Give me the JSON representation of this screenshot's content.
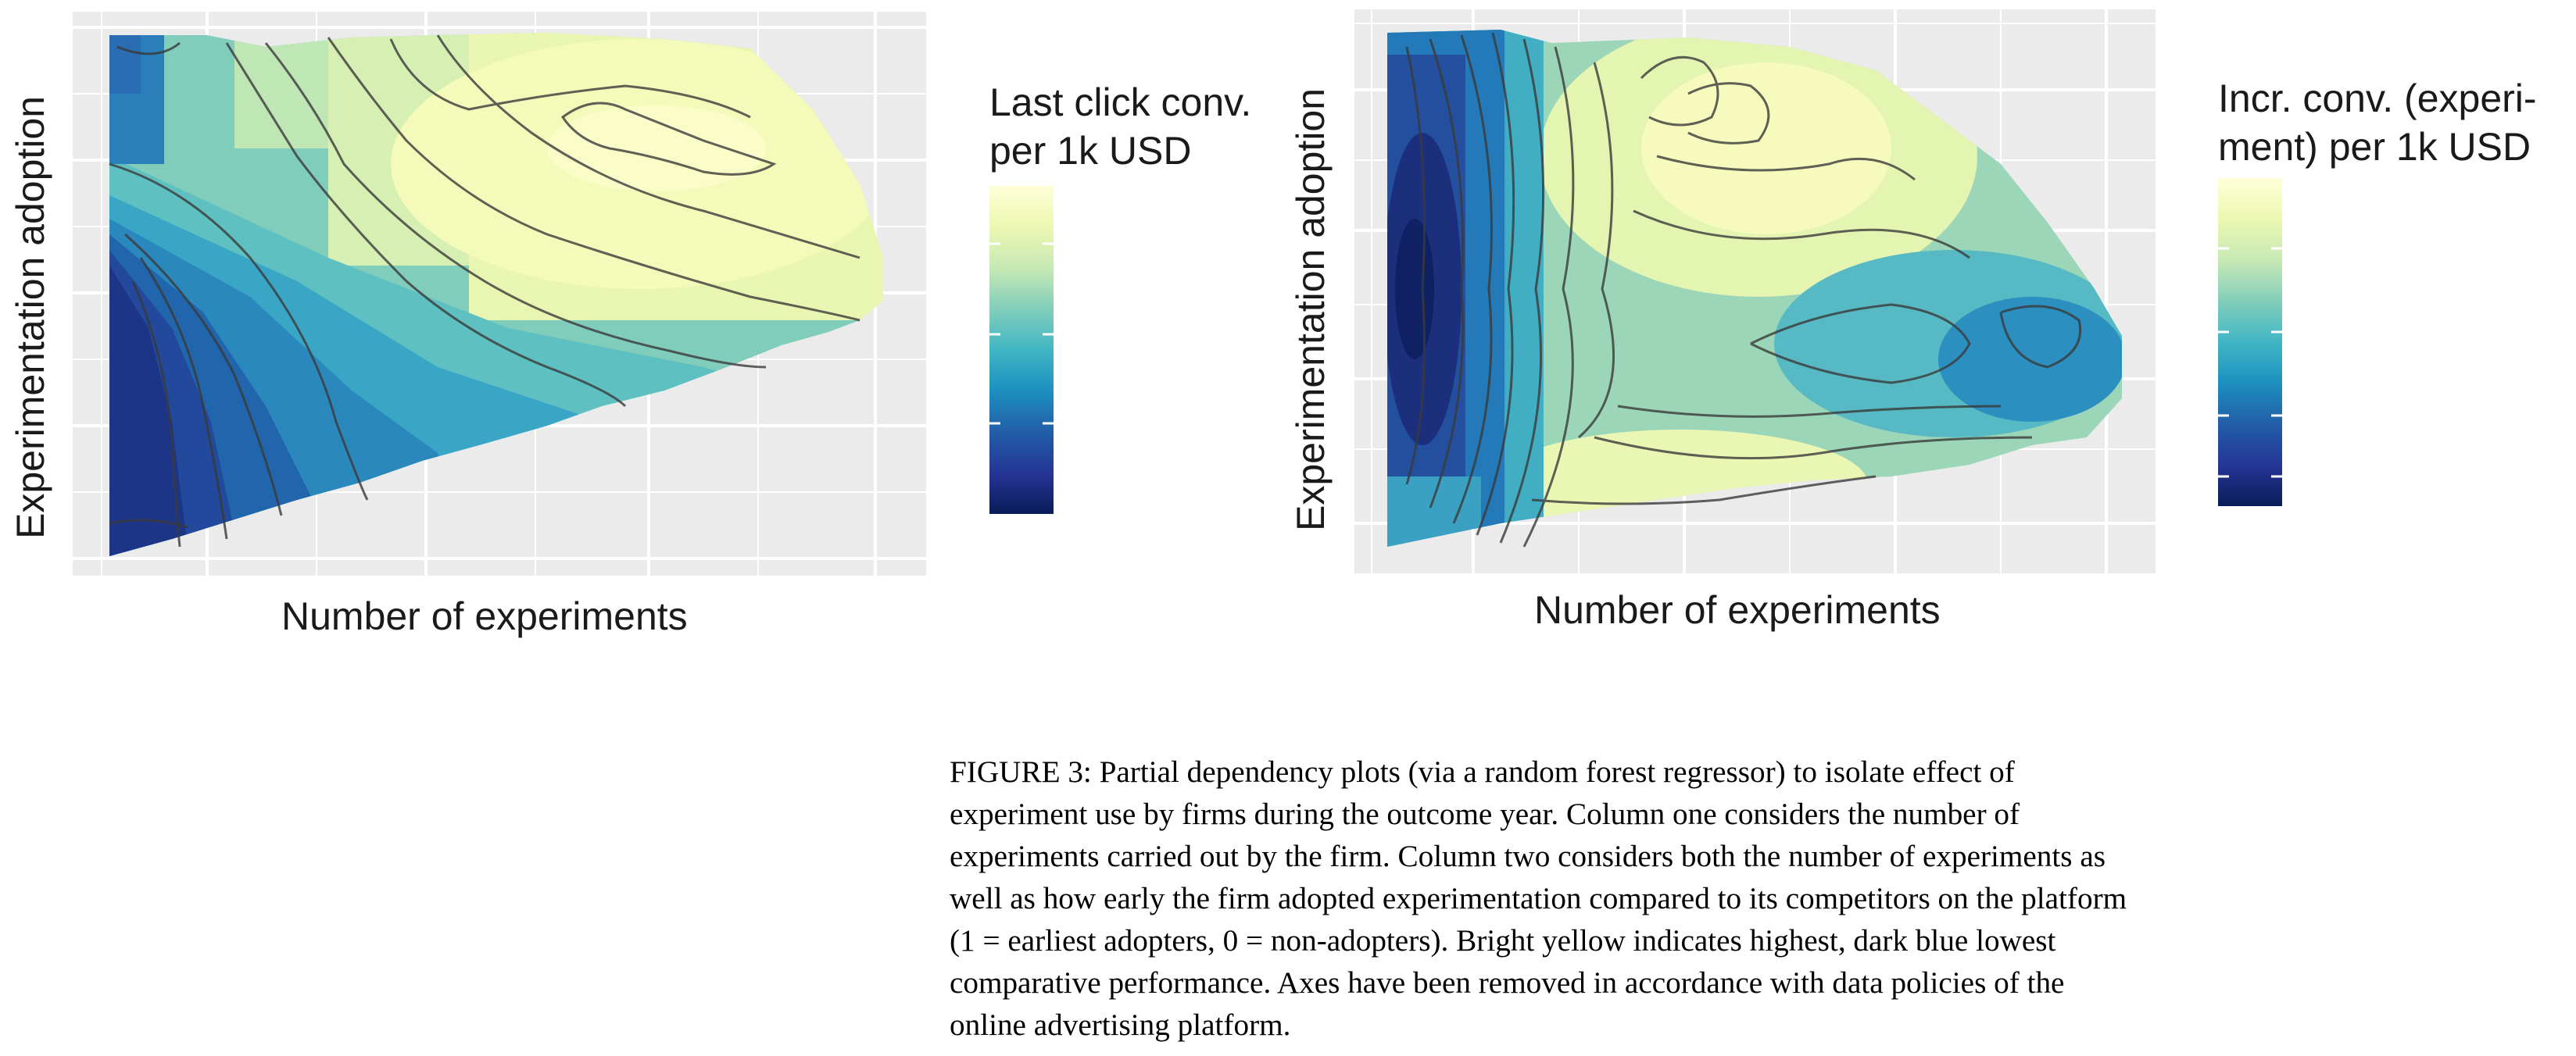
{
  "figure": {
    "caption_lines": [
      "FIGURE 3: Partial dependency plots (via a random forest regressor) to isolate effect of",
      "experiment use by firms during the outcome year. Column one considers the number of",
      "experiments carried out by the firm. Column two considers both the number of experiments as",
      "well as how early the firm adopted experimentation compared to its competitors on the platform",
      "(1 = earliest adopters, 0 = non-adopters). Bright yellow indicates highest, dark blue lowest",
      "comparative performance. Axes have been removed in accordance with data policies of the",
      "online advertising platform."
    ]
  },
  "chart_data": [
    {
      "type": "heatmap",
      "xlabel": "Number of experiments",
      "ylabel": "Experimentation adoption",
      "legend_title_lines": [
        "Last click conv.",
        "per 1k USD"
      ],
      "legend_position": "right",
      "colormap": [
        "#081d58",
        "#253494",
        "#225ea8",
        "#1d91c0",
        "#41b6c4",
        "#7fcdbb",
        "#c7e9b4",
        "#edf8b1",
        "#ffffd9"
      ],
      "x_range": [
        0,
        1
      ],
      "y_range": [
        0,
        1
      ],
      "contours": true,
      "grid": true,
      "axis_ticks_labels": "removed"
    },
    {
      "type": "heatmap",
      "xlabel": "Number of experiments",
      "ylabel": "Experimentation adoption",
      "legend_title_lines": [
        "Incr. conv. (experi-",
        "ment) per 1k USD"
      ],
      "legend_position": "right",
      "colormap": [
        "#081d58",
        "#253494",
        "#225ea8",
        "#1d91c0",
        "#41b6c4",
        "#7fcdbb",
        "#c7e9b4",
        "#edf8b1",
        "#ffffd9"
      ],
      "x_range": [
        0,
        1
      ],
      "y_range": [
        0,
        1
      ],
      "contours": true,
      "grid": true,
      "axis_ticks_labels": "removed"
    }
  ]
}
